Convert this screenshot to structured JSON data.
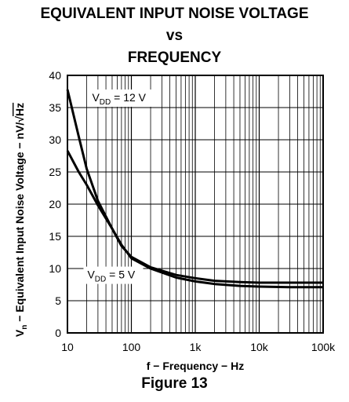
{
  "titles": [
    "EQUIVALENT INPUT NOISE VOLTAGE",
    "vs",
    "FREQUENCY"
  ],
  "figure_label": "Figure 13",
  "chart_data": {
    "type": "line",
    "x_scale": "log",
    "xlim": [
      10,
      100000
    ],
    "ylim": [
      0,
      40
    ],
    "xlabel": "f − Frequency − Hz",
    "ylabel": "V n − Equivalent Input Noise Voltage − nV/√Hz",
    "ylabel_parts": {
      "main": "V",
      "sub": "n",
      "rest": "− Equivalent Input Noise Voltage − nV/",
      "radical": "√",
      "radicand": "Hz"
    },
    "x_ticks": [
      {
        "value": 10,
        "label": "10"
      },
      {
        "value": 100,
        "label": "100"
      },
      {
        "value": 1000,
        "label": "1k"
      },
      {
        "value": 10000,
        "label": "10k"
      },
      {
        "value": 100000,
        "label": "100k"
      }
    ],
    "y_ticks": [
      0,
      5,
      10,
      15,
      20,
      25,
      30,
      35,
      40
    ],
    "grid": true,
    "series": [
      {
        "label_main": "V",
        "label_sub": "DD",
        "label_rest": " = 12 V",
        "x": [
          10,
          15,
          20,
          30,
          50,
          70,
          100,
          200,
          500,
          1000,
          2000,
          5000,
          10000,
          30000,
          100000
        ],
        "y": [
          37.8,
          30.5,
          25.5,
          20.5,
          16.2,
          13.5,
          11.8,
          10.2,
          9.0,
          8.5,
          8.1,
          7.9,
          7.8,
          7.8,
          7.8
        ]
      },
      {
        "label_main": "V",
        "label_sub": "DD",
        "label_rest": " = 5 V",
        "x": [
          10,
          15,
          20,
          30,
          50,
          70,
          100,
          200,
          500,
          1000,
          2000,
          5000,
          10000,
          30000,
          100000
        ],
        "y": [
          28.3,
          25.0,
          23.0,
          19.8,
          16.2,
          13.7,
          11.6,
          10.0,
          8.6,
          8.0,
          7.6,
          7.3,
          7.2,
          7.1,
          7.1
        ]
      }
    ]
  }
}
